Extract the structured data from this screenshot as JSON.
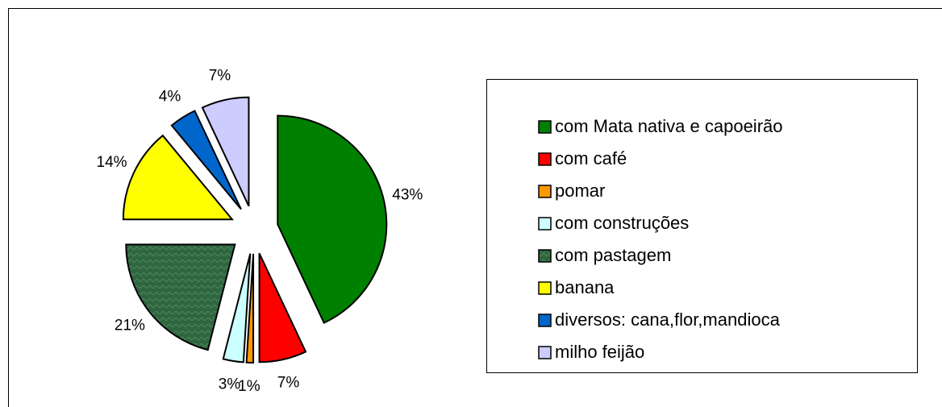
{
  "chart_data": {
    "type": "pie",
    "categories": [
      "com Mata nativa e capoeirão",
      "com café",
      "pomar",
      "com construções",
      " com pastagem",
      "banana",
      "diversos: cana,flor,mandioca",
      "milho feijão"
    ],
    "values": [
      43,
      7,
      1,
      3,
      21,
      14,
      4,
      7
    ],
    "value_labels": [
      "43%",
      "7%",
      "1%",
      "3%",
      "21%",
      "14%",
      "4%",
      "7%"
    ],
    "colors": [
      "#008000",
      "#ff0000",
      "#ff9900",
      "#ccffff",
      "#2f6640",
      "#ffff00",
      "#0066cc",
      "#ccccff"
    ],
    "legend": "right"
  }
}
